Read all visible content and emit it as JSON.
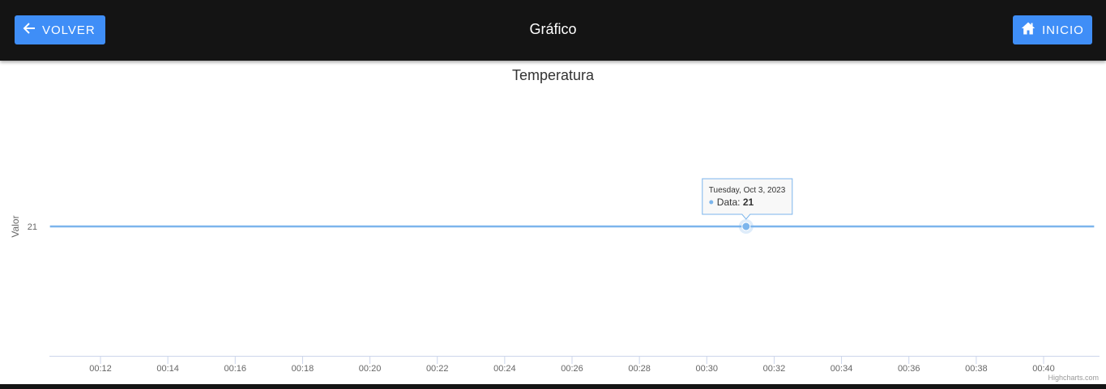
{
  "header": {
    "back_label": "VOLVER",
    "title": "Gráfico",
    "home_label": "INICIO"
  },
  "icons": {
    "back": "arrow-left-icon",
    "home": "home-icon"
  },
  "colors": {
    "topbar": "#141414",
    "button": "#3f8ef7",
    "series": "#7cb5ec"
  },
  "chart_data": {
    "type": "line",
    "title": "Temperatura",
    "ylabel": "Valor",
    "xlabel": "",
    "x_ticks": [
      "00:12",
      "00:14",
      "00:16",
      "00:18",
      "00:20",
      "00:22",
      "00:24",
      "00:26",
      "00:28",
      "00:30",
      "00:32",
      "00:34",
      "00:36",
      "00:38",
      "00:40"
    ],
    "y_ticks": [
      "21"
    ],
    "series": [
      {
        "name": "Data",
        "x": [
          "00:10:30",
          "00:41:30"
        ],
        "values": [
          21,
          21
        ]
      }
    ],
    "tooltip": {
      "date": "Tuesday, Oct 3, 2023",
      "series_name": "Data",
      "value": "21",
      "x": "00:31:10"
    },
    "credits": "Highcharts.com"
  }
}
